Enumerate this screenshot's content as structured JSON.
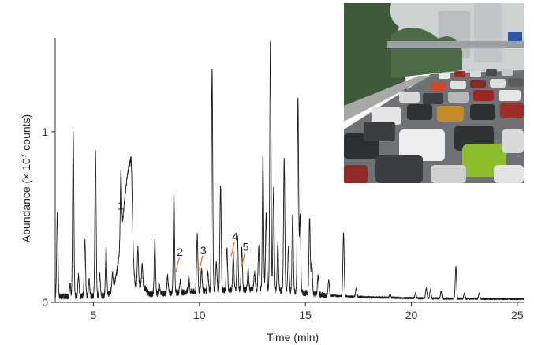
{
  "chart_data": {
    "type": "line",
    "title": "",
    "xlabel": "Time (min)",
    "ylabel": "Abundance (× 10",
    "ylabel_exponent": "7",
    "ylabel_suffix": " counts)",
    "xlim": [
      3.2,
      25.3
    ],
    "ylim": [
      0,
      1.55
    ],
    "x_ticks": [
      5,
      10,
      15,
      20,
      25
    ],
    "y_ticks": [
      0,
      1
    ],
    "line_color": "#1a1a1a",
    "annotation_color": "#e87722",
    "peaks": [
      {
        "x": 3.3,
        "h": 0.5
      },
      {
        "x": 3.9,
        "h": 0.07
      },
      {
        "x": 4.05,
        "h": 0.95
      },
      {
        "x": 4.3,
        "h": 0.12
      },
      {
        "x": 4.6,
        "h": 0.33
      },
      {
        "x": 4.8,
        "h": 0.1
      },
      {
        "x": 5.1,
        "h": 0.84
      },
      {
        "x": 5.3,
        "h": 0.12
      },
      {
        "x": 5.6,
        "h": 0.28
      },
      {
        "x": 5.9,
        "h": 0.1
      },
      {
        "x": 6.3,
        "h": 0.41
      },
      {
        "x": 6.8,
        "h": 0.08
      },
      {
        "x": 7.1,
        "h": 0.23
      },
      {
        "x": 7.3,
        "h": 0.12
      },
      {
        "x": 7.9,
        "h": 0.31
      },
      {
        "x": 8.1,
        "h": 0.06
      },
      {
        "x": 8.5,
        "h": 0.1
      },
      {
        "x": 8.8,
        "h": 0.58
      },
      {
        "x": 9.1,
        "h": 0.07
      },
      {
        "x": 9.5,
        "h": 0.09
      },
      {
        "x": 9.9,
        "h": 0.33
      },
      {
        "x": 10.1,
        "h": 0.13
      },
      {
        "x": 10.4,
        "h": 0.11
      },
      {
        "x": 10.6,
        "h": 1.3
      },
      {
        "x": 10.8,
        "h": 0.16
      },
      {
        "x": 11.0,
        "h": 0.62
      },
      {
        "x": 11.3,
        "h": 0.25
      },
      {
        "x": 11.6,
        "h": 0.21
      },
      {
        "x": 11.8,
        "h": 0.31
      },
      {
        "x": 12.0,
        "h": 0.24
      },
      {
        "x": 12.3,
        "h": 0.12
      },
      {
        "x": 12.6,
        "h": 0.1
      },
      {
        "x": 12.8,
        "h": 0.25
      },
      {
        "x": 13.0,
        "h": 0.79
      },
      {
        "x": 13.15,
        "h": 0.45
      },
      {
        "x": 13.35,
        "h": 1.45
      },
      {
        "x": 13.5,
        "h": 0.6
      },
      {
        "x": 13.7,
        "h": 0.28
      },
      {
        "x": 14.0,
        "h": 0.76
      },
      {
        "x": 14.2,
        "h": 0.25
      },
      {
        "x": 14.4,
        "h": 0.45
      },
      {
        "x": 14.65,
        "h": 1.13
      },
      {
        "x": 14.75,
        "h": 0.45
      },
      {
        "x": 15.2,
        "h": 0.44
      },
      {
        "x": 15.3,
        "h": 0.2
      },
      {
        "x": 15.6,
        "h": 0.11
      },
      {
        "x": 16.1,
        "h": 0.09
      },
      {
        "x": 16.8,
        "h": 0.37
      },
      {
        "x": 17.4,
        "h": 0.05
      },
      {
        "x": 19.0,
        "h": 0.02
      },
      {
        "x": 20.2,
        "h": 0.03
      },
      {
        "x": 20.7,
        "h": 0.06
      },
      {
        "x": 20.9,
        "h": 0.05
      },
      {
        "x": 21.4,
        "h": 0.04
      },
      {
        "x": 22.1,
        "h": 0.19
      },
      {
        "x": 22.5,
        "h": 0.03
      },
      {
        "x": 23.2,
        "h": 0.03
      }
    ],
    "humps": [
      {
        "center": 6.75,
        "width": 0.35,
        "height": 0.75
      },
      {
        "center": 7.35,
        "width": 0.45,
        "height": 0.05
      }
    ],
    "baseline": [
      [
        3.2,
        0.035
      ],
      [
        6.0,
        0.04
      ],
      [
        8.0,
        0.05
      ],
      [
        10.0,
        0.065
      ],
      [
        12.0,
        0.075
      ],
      [
        14.0,
        0.07
      ],
      [
        15.0,
        0.055
      ],
      [
        16.0,
        0.04
      ],
      [
        18.0,
        0.03
      ],
      [
        20.0,
        0.025
      ],
      [
        22.0,
        0.022
      ],
      [
        25.3,
        0.02
      ]
    ],
    "annotations": [
      {
        "label": "1",
        "x": 6.35,
        "tip_y": 0.47,
        "leader": false
      },
      {
        "label": "2",
        "x": 8.9,
        "tip_y": 0.18,
        "leader": true
      },
      {
        "label": "3",
        "x": 10.0,
        "tip_y": 0.19,
        "leader": true
      },
      {
        "label": "4",
        "x": 11.5,
        "tip_y": 0.27,
        "leader": true
      },
      {
        "label": "5",
        "x": 12.0,
        "tip_y": 0.21,
        "leader": true
      }
    ]
  },
  "photo": {
    "sky": "#cdd1d2",
    "road": "#6f7274",
    "trees": "#3e5a3a"
  }
}
